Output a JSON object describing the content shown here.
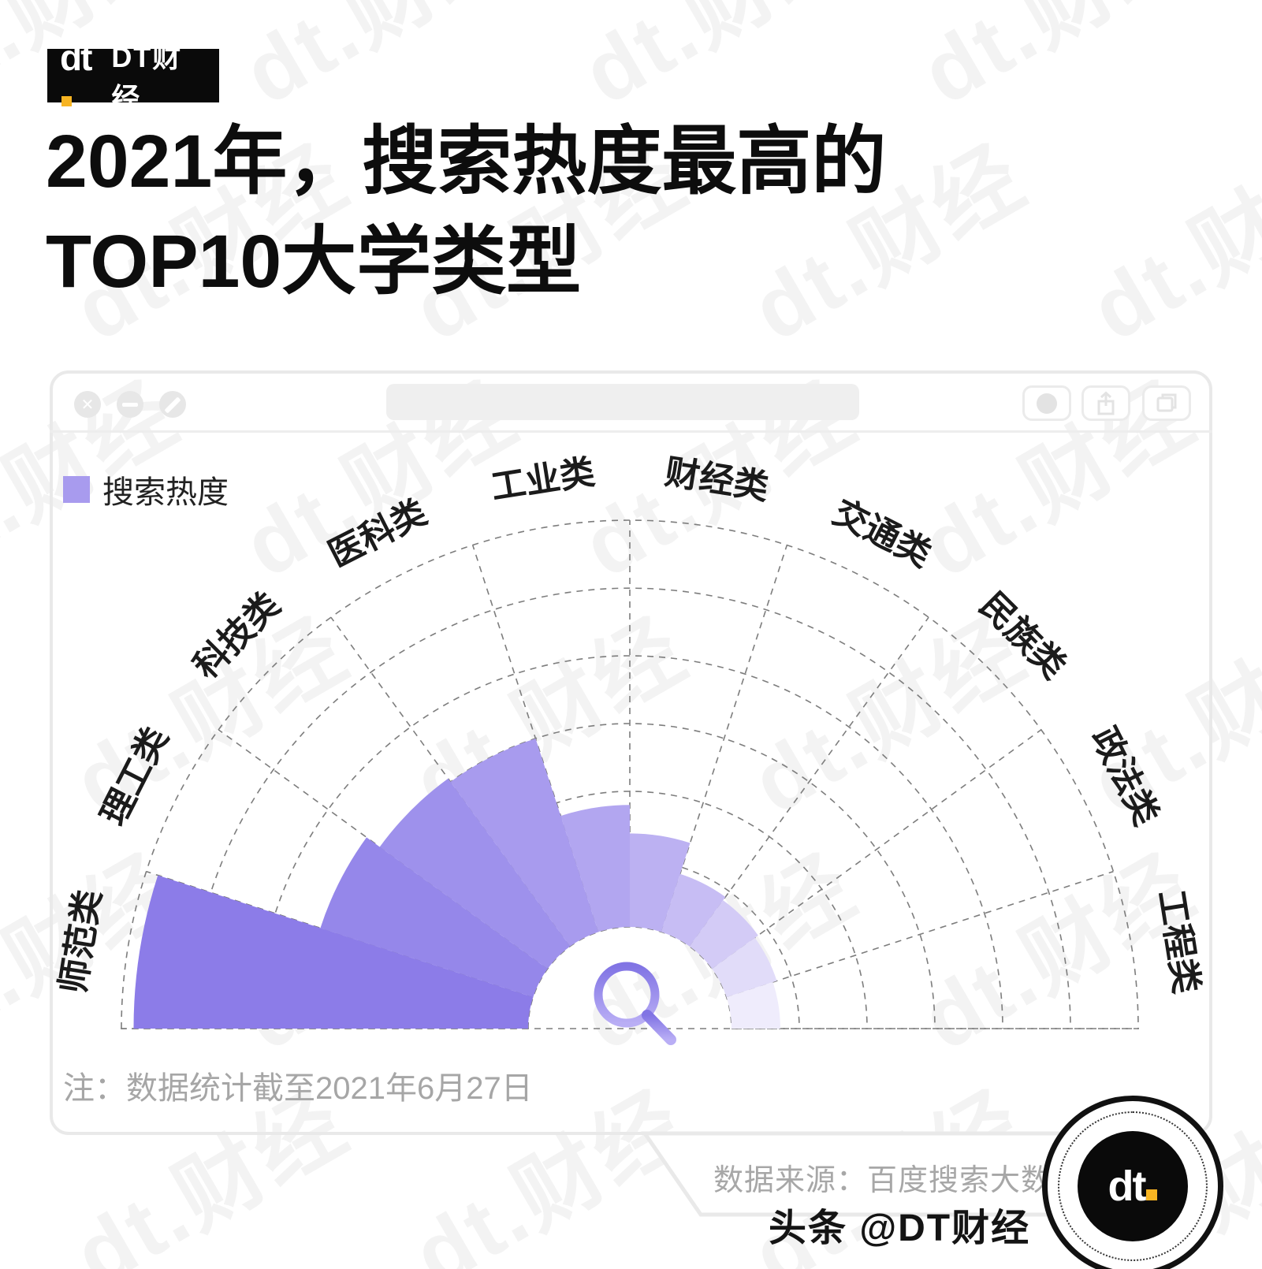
{
  "brand": {
    "logo_glyph": "dt",
    "logo_label": "DT财经",
    "watermark_text": "dt.财经",
    "accent_yellow": "#f7b422",
    "badge_glyph": "dt"
  },
  "title": {
    "line1": "2021年，搜索热度最高的",
    "line2": "TOP10大学类型"
  },
  "window": {
    "controls": [
      "close",
      "minimize",
      "block"
    ],
    "toolbar_buttons": [
      "record-dot",
      "share",
      "copy"
    ]
  },
  "legend": {
    "label": "搜索热度",
    "color": "#a89bee"
  },
  "chart_data": {
    "type": "polar_bar",
    "title": "搜索热度 TOP10 大学类型",
    "orientation": "semicircle-fan, 180° at left to 0° at right, 10 sectors of 18°",
    "categories": [
      "师范类",
      "理工类",
      "科技类",
      "医科类",
      "工业类",
      "财经类",
      "交通类",
      "民族类",
      "政法类",
      "工程类"
    ],
    "values": [
      97,
      55,
      51,
      50,
      30,
      23,
      15,
      14,
      13,
      12
    ],
    "value_scale": [
      0,
      100
    ],
    "rings": 6,
    "grid": "dashed concentric arcs and radial spokes",
    "bar_colors": [
      "#8c7ce8",
      "#9587ea",
      "#9e91ec",
      "#a89bee",
      "#b2a6f0",
      "#bcb1f2",
      "#c7bdf4",
      "#d3cbf6",
      "#e1dcf9",
      "#efecfc"
    ],
    "grid_color": "#7d7d7d",
    "label_color": "#1b1b1b",
    "center_icon": "magnifier",
    "center_icon_colors": [
      "#8174e4",
      "#b9aef5"
    ]
  },
  "note": "注：数据统计截至2021年6月27日",
  "source": "数据来源：百度搜索大数据",
  "footer": "头条 @DT财经"
}
